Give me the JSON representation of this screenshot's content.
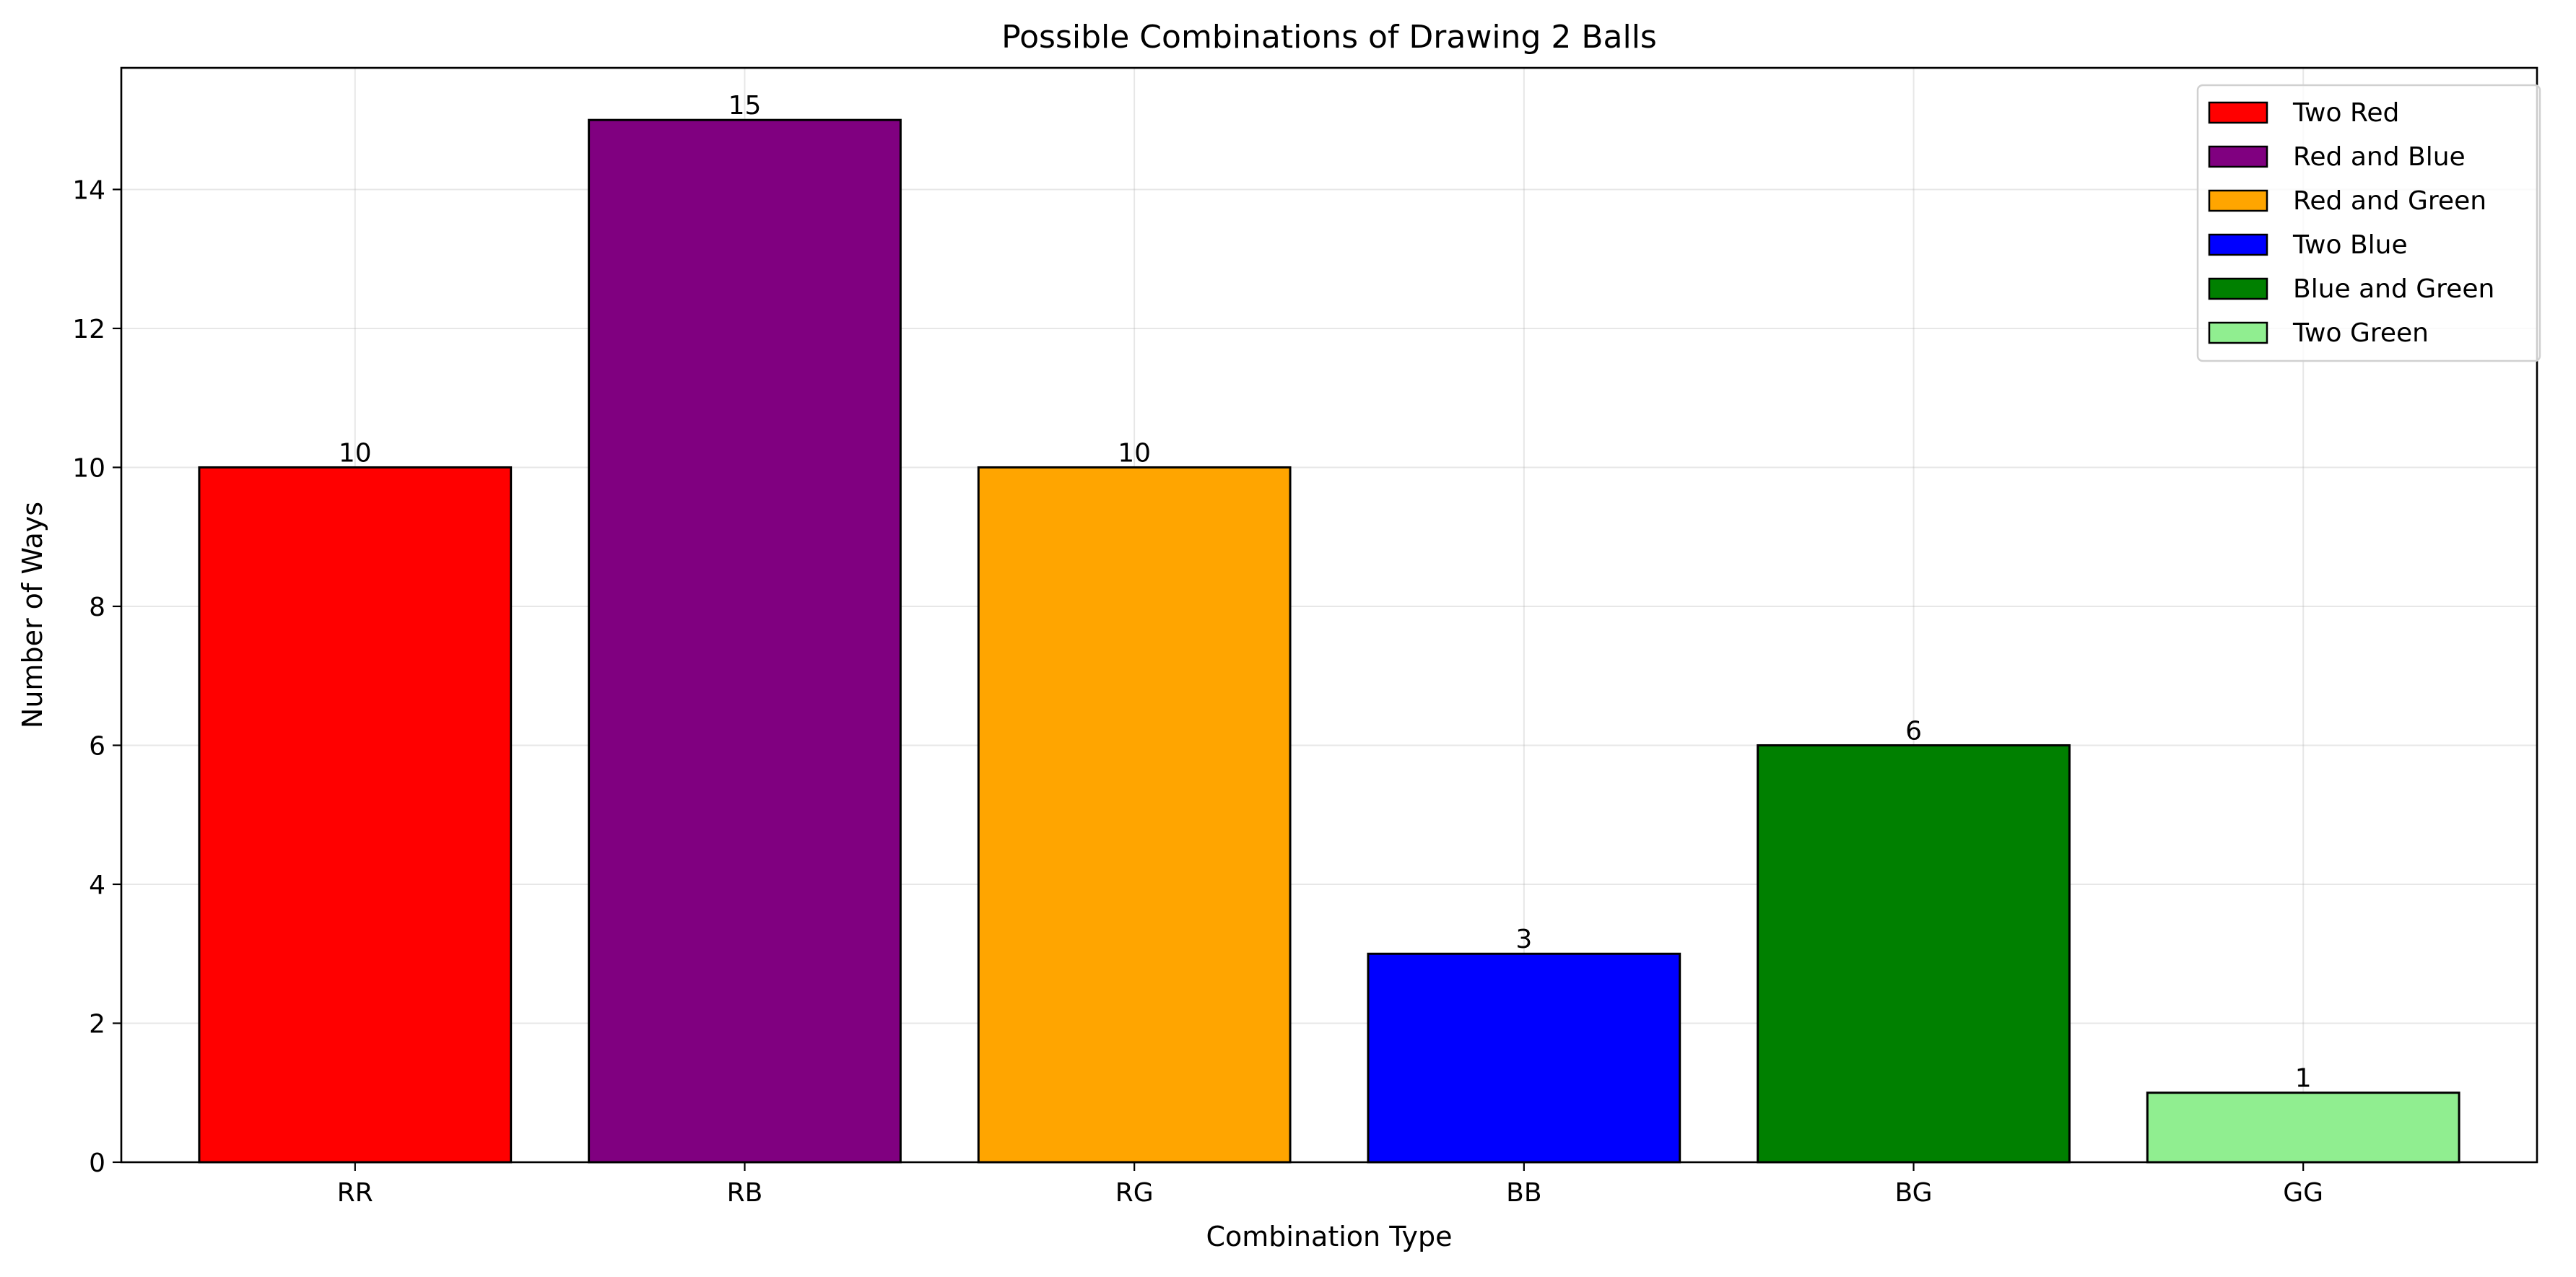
{
  "chart_data": {
    "type": "bar",
    "title": "Possible Combinations of Drawing 2 Balls",
    "xlabel": "Combination Type",
    "ylabel": "Number of Ways",
    "categories": [
      "RR",
      "RB",
      "RG",
      "BB",
      "BG",
      "GG"
    ],
    "values": [
      10,
      15,
      10,
      3,
      6,
      1
    ],
    "data_labels": [
      "10",
      "15",
      "10",
      "3",
      "6",
      "1"
    ],
    "bar_colors": [
      "#ff0000",
      "#800080",
      "#ffa500",
      "#0000ff",
      "#008000",
      "#90ee90"
    ],
    "edge_color": "#000000",
    "ylim": [
      0,
      15.75
    ],
    "yticks": [
      0,
      2,
      4,
      6,
      8,
      10,
      12,
      14
    ],
    "grid": true,
    "legend": {
      "placement": "top-right",
      "entries": [
        {
          "label": "Two Red",
          "color": "#ff0000"
        },
        {
          "label": "Red and Blue",
          "color": "#800080"
        },
        {
          "label": "Red and Green",
          "color": "#ffa500"
        },
        {
          "label": "Two Blue",
          "color": "#0000ff"
        },
        {
          "label": "Blue and Green",
          "color": "#008000"
        },
        {
          "label": "Two Green",
          "color": "#90ee90"
        }
      ]
    }
  }
}
